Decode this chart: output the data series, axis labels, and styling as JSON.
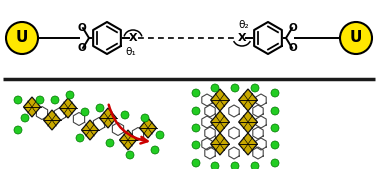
{
  "background_color": "#ffffff",
  "yellow_circle_color": "#FFE800",
  "yellow_circle_edge": "#000000",
  "u_label": "U",
  "u_fontsize": 11,
  "divider_color": "#1a1a1a",
  "divider_lw": 2.5,
  "red_arrow_color": "#cc0000",
  "green_dot_color": "#22cc22",
  "yellow_poly_color": "#c8a800",
  "poly_edge_color": "#111111",
  "theta1_label": "θ₁",
  "theta2_label": "θ₂",
  "x_label": "X",
  "fig_width": 3.78,
  "fig_height": 1.69,
  "dpi": 100
}
